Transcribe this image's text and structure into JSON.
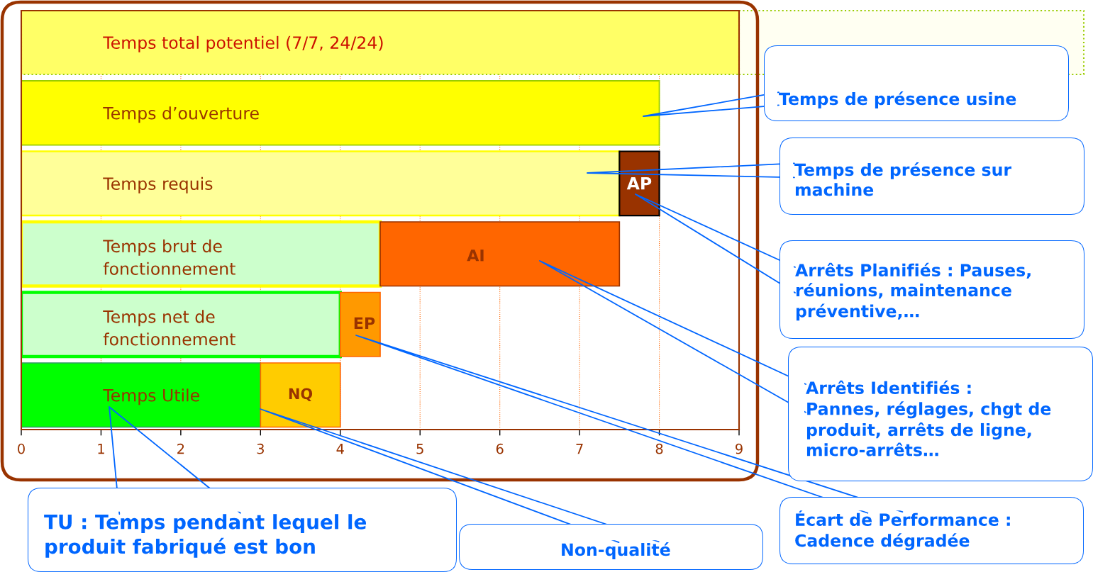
{
  "chart_data": {
    "type": "bar",
    "orientation": "horizontal",
    "stacked": true,
    "categories": [
      "Temps total potentiel (7/7, 24/24)",
      "Temps d’ouverture",
      "Temps requis",
      "Temps brut de\nfonctionnement",
      "Temps net de\nfonctionnement",
      "Temps Utile"
    ],
    "series": [
      {
        "values": [
          9,
          8,
          7.5,
          4.5,
          4,
          3
        ],
        "colors": [
          "#ffff66",
          "#ffff00",
          "#ffff99",
          "#ccffcc",
          "#ccffcc",
          "#00ff00"
        ]
      },
      {
        "values": [
          null,
          null,
          0.5,
          3,
          0.5,
          1
        ],
        "colors": [
          null,
          null,
          "#993300",
          "#ff6600",
          "#ff9900",
          "#ffcc00"
        ]
      }
    ],
    "xlim": [
      0,
      9
    ],
    "xticks": [
      0,
      1,
      2,
      3,
      4,
      5,
      6,
      7,
      8,
      9
    ],
    "grid": "x",
    "annotations": [
      "Temps de présence usine",
      "Temps de présence sur\nmachine",
      "Arrêts Planifiés : Pauses,\nréunions, maintenance\npréventive,…",
      "Arrêts Identifiés :\nPannes, réglages, chgt de\nproduit, arrêts de ligne,\nmicro-arrêts…",
      "Écart de Performance :\nCadence dégradée",
      "Non-qualité",
      "TU : Temps pendant lequel le\nproduit fabriqué est bon",
      {
        "text": "AP",
        "x": 7.75,
        "y": "Temps requis"
      },
      {
        "text": "AI",
        "x": 5.7,
        "y": "Temps brut de\nfonctionnement"
      },
      {
        "text": "EP",
        "x": 4.3,
        "y": "Temps net de\nfonctionnement"
      },
      {
        "text": "NQ",
        "x": 3.5,
        "y": "Temps Utile"
      }
    ]
  }
}
